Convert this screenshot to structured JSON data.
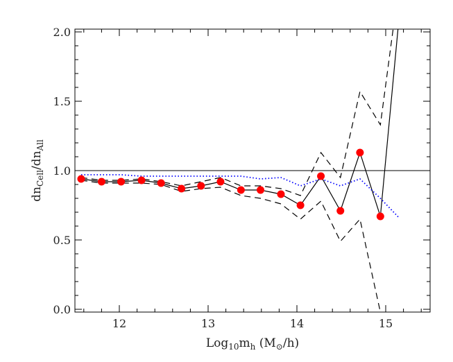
{
  "chart_data": {
    "type": "line",
    "xlabel": "Log₁₀mₕ (M☉/h)",
    "ylabel": "dn_Cell/dn_All",
    "xlabel_parts": {
      "a": "Log",
      "a_sub": "10",
      "b": "m",
      "b_sub": "h",
      "c": " (M",
      "c_sub": "⊙",
      "d": "/h)"
    },
    "ylabel_parts": {
      "a": "dn",
      "a_sub": "Cell",
      "b": "/dn",
      "b_sub": "All"
    },
    "xlim": [
      11.5,
      15.5
    ],
    "ylim": [
      -0.02,
      2.02
    ],
    "x_ticks": [
      12,
      13,
      14,
      15
    ],
    "x_tick_labels": [
      "12",
      "13",
      "14",
      "15"
    ],
    "y_ticks": [
      0.0,
      0.5,
      1.0,
      1.5,
      2.0
    ],
    "y_tick_labels": [
      "0.0",
      "0.5",
      "1.0",
      "1.5",
      "2.0"
    ],
    "reference_line": {
      "y": 1.0,
      "color": "#000000"
    },
    "series": [
      {
        "style": "solid-markers",
        "color": "#000000",
        "marker_color": "#ff0000",
        "x": [
          11.57,
          11.8,
          12.02,
          12.25,
          12.47,
          12.7,
          12.92,
          13.14,
          13.37,
          13.59,
          13.82,
          14.04,
          14.27,
          14.49,
          14.71,
          14.94
        ],
        "y": [
          0.94,
          0.92,
          0.92,
          0.93,
          0.91,
          0.87,
          0.89,
          0.92,
          0.86,
          0.86,
          0.83,
          0.75,
          0.96,
          0.71,
          1.13,
          0.67
        ],
        "line_extension": {
          "x": [
            14.94,
            15.15
          ],
          "y": [
            0.67,
            2.1
          ]
        }
      },
      {
        "style": "dashed",
        "color": "#000000",
        "x": [
          11.57,
          11.8,
          12.02,
          12.25,
          12.47,
          12.7,
          12.92,
          13.14,
          13.37,
          13.59,
          13.82,
          14.04,
          14.27,
          14.49,
          14.71,
          14.94,
          15.1
        ],
        "y": [
          0.95,
          0.93,
          0.93,
          0.94,
          0.92,
          0.89,
          0.92,
          0.95,
          0.89,
          0.89,
          0.87,
          0.82,
          1.13,
          0.95,
          1.57,
          1.33,
          2.1
        ]
      },
      {
        "style": "dashed",
        "color": "#000000",
        "x": [
          11.57,
          11.8,
          12.02,
          12.25,
          12.47,
          12.7,
          12.92,
          13.14,
          13.37,
          13.59,
          13.82,
          14.04,
          14.27,
          14.49,
          14.71,
          14.94,
          15.0
        ],
        "y": [
          0.93,
          0.91,
          0.91,
          0.91,
          0.9,
          0.85,
          0.87,
          0.88,
          0.82,
          0.8,
          0.76,
          0.65,
          0.78,
          0.49,
          0.65,
          -0.02,
          -0.1
        ]
      },
      {
        "style": "dotted",
        "color": "#0000ff",
        "x": [
          11.57,
          11.8,
          12.02,
          12.25,
          12.47,
          12.7,
          12.92,
          13.14,
          13.37,
          13.59,
          13.82,
          14.04,
          14.27,
          14.49,
          14.71,
          14.94,
          15.15
        ],
        "y": [
          0.97,
          0.97,
          0.97,
          0.96,
          0.96,
          0.96,
          0.96,
          0.96,
          0.96,
          0.94,
          0.95,
          0.89,
          0.94,
          0.89,
          0.94,
          0.8,
          0.66
        ]
      }
    ]
  }
}
